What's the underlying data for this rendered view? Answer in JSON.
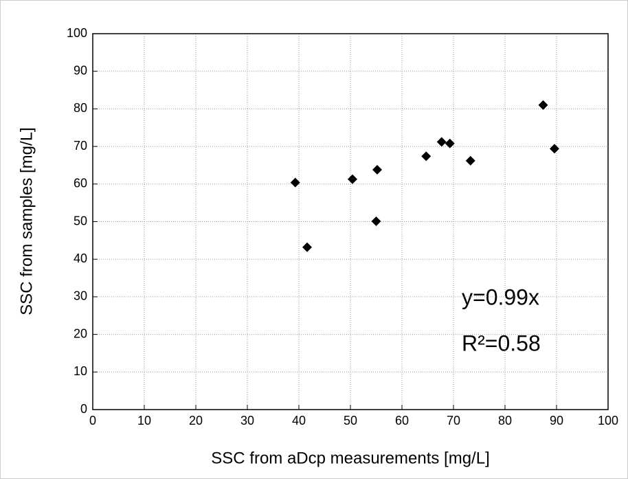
{
  "chart_data": {
    "type": "scatter",
    "x_label": "SSC from aDcp measurements [mg/L]",
    "y_label": "SSC from samples [mg/L]",
    "annotations": [
      "y=0.99x",
      "R²=0.58"
    ],
    "series": [
      {
        "name": "SSC",
        "color": "#000000",
        "x": [
          39.3,
          41.6,
          50.4,
          55.0,
          55.2,
          64.7,
          67.7,
          69.3,
          73.3,
          87.4,
          89.6
        ],
        "values": [
          60.4,
          43.2,
          61.3,
          50.1,
          63.8,
          67.4,
          71.2,
          70.8,
          66.2,
          81.0,
          69.4
        ]
      }
    ],
    "xlim": [
      0,
      100
    ],
    "ylim": [
      0,
      100
    ],
    "xticks": [
      0,
      10,
      20,
      30,
      40,
      50,
      60,
      70,
      80,
      90,
      100
    ],
    "yticks": [
      0,
      10,
      20,
      30,
      40,
      50,
      60,
      70,
      80,
      90,
      100
    ],
    "grid": true
  }
}
